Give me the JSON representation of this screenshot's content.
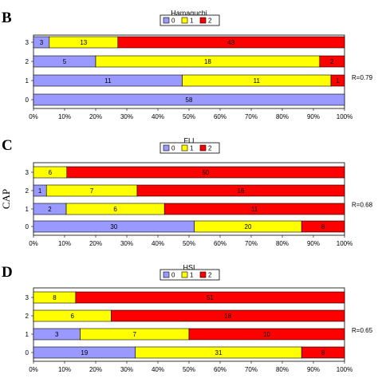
{
  "chart_data": [
    {
      "type": "bar",
      "orientation": "horizontal",
      "stacked": "percent",
      "panel": "B",
      "title": "Hamaguchi",
      "categories": [
        "3",
        "2",
        "1",
        "0"
      ],
      "series": [
        {
          "name": "0",
          "color": "#9999ff",
          "values": [
            3,
            5,
            11,
            58
          ]
        },
        {
          "name": "1",
          "color": "#ffff00",
          "values": [
            13,
            18,
            11,
            0
          ]
        },
        {
          "name": "2",
          "color": "#ff0000",
          "values": [
            43,
            2,
            1,
            0
          ]
        }
      ],
      "xticks": [
        "0%",
        "10%",
        "20%",
        "30%",
        "40%",
        "50%",
        "60%",
        "70%",
        "80%",
        "90%",
        "100%"
      ],
      "xlim": [
        0,
        100
      ],
      "annotation": "R=0.79",
      "legend": "top"
    },
    {
      "type": "bar",
      "orientation": "horizontal",
      "stacked": "percent",
      "panel": "C",
      "title": "FLI",
      "categories": [
        "3",
        "2",
        "1",
        "0"
      ],
      "series": [
        {
          "name": "0",
          "color": "#9999ff",
          "values": [
            0,
            1,
            2,
            30
          ]
        },
        {
          "name": "1",
          "color": "#ffff00",
          "values": [
            6,
            7,
            6,
            20
          ]
        },
        {
          "name": "2",
          "color": "#ff0000",
          "values": [
            50,
            16,
            11,
            8
          ]
        }
      ],
      "xticks": [
        "0%",
        "10%",
        "20%",
        "30%",
        "40%",
        "50%",
        "60%",
        "70%",
        "80%",
        "90%",
        "100%"
      ],
      "xlim": [
        0,
        100
      ],
      "annotation": "R=0.68",
      "ylabel": "CAP",
      "legend": "top"
    },
    {
      "type": "bar",
      "orientation": "horizontal",
      "stacked": "percent",
      "panel": "D",
      "title": "HSI",
      "categories": [
        "3",
        "2",
        "1",
        "0"
      ],
      "series": [
        {
          "name": "0",
          "color": "#9999ff",
          "values": [
            0,
            0,
            3,
            19
          ]
        },
        {
          "name": "1",
          "color": "#ffff00",
          "values": [
            8,
            6,
            7,
            31
          ]
        },
        {
          "name": "2",
          "color": "#ff0000",
          "values": [
            51,
            18,
            10,
            8
          ]
        }
      ],
      "xticks": [
        "0%",
        "10%",
        "20%",
        "30%",
        "40%",
        "50%",
        "60%",
        "70%",
        "80%",
        "90%",
        "100%"
      ],
      "xlim": [
        0,
        100
      ],
      "annotation": "R=0.65",
      "legend": "top"
    }
  ]
}
